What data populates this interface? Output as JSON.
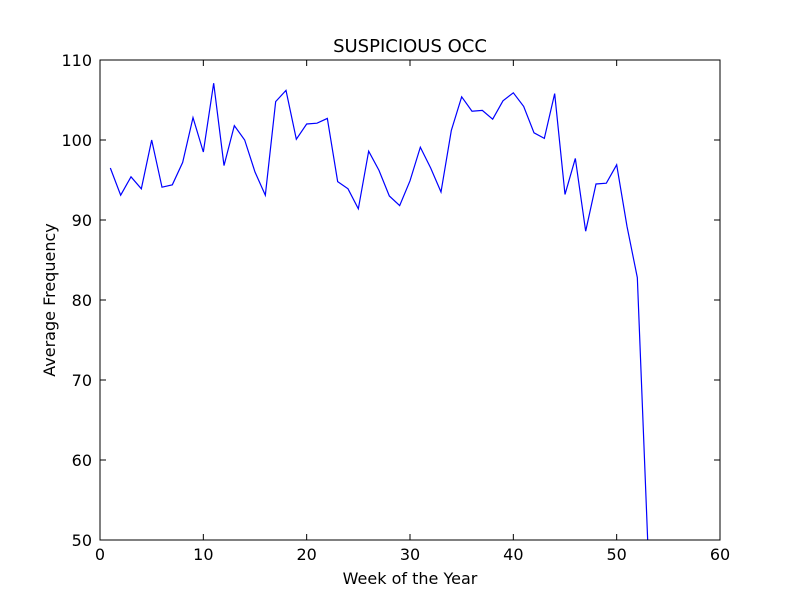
{
  "chart_data": {
    "type": "line",
    "title": "SUSPICIOUS OCC",
    "xlabel": "Week of the Year",
    "ylabel": "Average Frequency",
    "xlim": [
      0,
      60
    ],
    "ylim": [
      50,
      110
    ],
    "xticks": [
      0,
      10,
      20,
      30,
      40,
      50,
      60
    ],
    "yticks": [
      50,
      60,
      70,
      80,
      90,
      100,
      110
    ],
    "grid": false,
    "legend": "none",
    "series": [
      {
        "color": "#0000ff",
        "x": [
          1,
          2,
          3,
          4,
          5,
          6,
          7,
          8,
          9,
          10,
          11,
          12,
          13,
          14,
          15,
          16,
          17,
          18,
          19,
          20,
          21,
          22,
          23,
          24,
          25,
          26,
          27,
          28,
          29,
          30,
          31,
          32,
          33,
          34,
          35,
          36,
          37,
          38,
          39,
          40,
          41,
          42,
          43,
          44,
          45,
          46,
          47,
          48,
          49,
          50,
          51,
          52,
          53
        ],
        "y": [
          96.5,
          93.1,
          95.4,
          93.9,
          100.0,
          94.1,
          94.4,
          97.2,
          102.8,
          98.5,
          107.1,
          96.8,
          101.8,
          100.0,
          96.0,
          93.1,
          104.8,
          106.2,
          100.1,
          102.0,
          102.1,
          102.7,
          94.8,
          93.9,
          91.4,
          98.6,
          96.2,
          93.0,
          91.8,
          94.9,
          99.1,
          96.5,
          93.5,
          101.2,
          105.4,
          103.6,
          103.7,
          102.6,
          104.9,
          105.9,
          104.2,
          100.9,
          100.2,
          105.8,
          93.2,
          97.7,
          88.6,
          94.5,
          94.6,
          96.9,
          89.2,
          82.8,
          50.0
        ]
      }
    ]
  }
}
